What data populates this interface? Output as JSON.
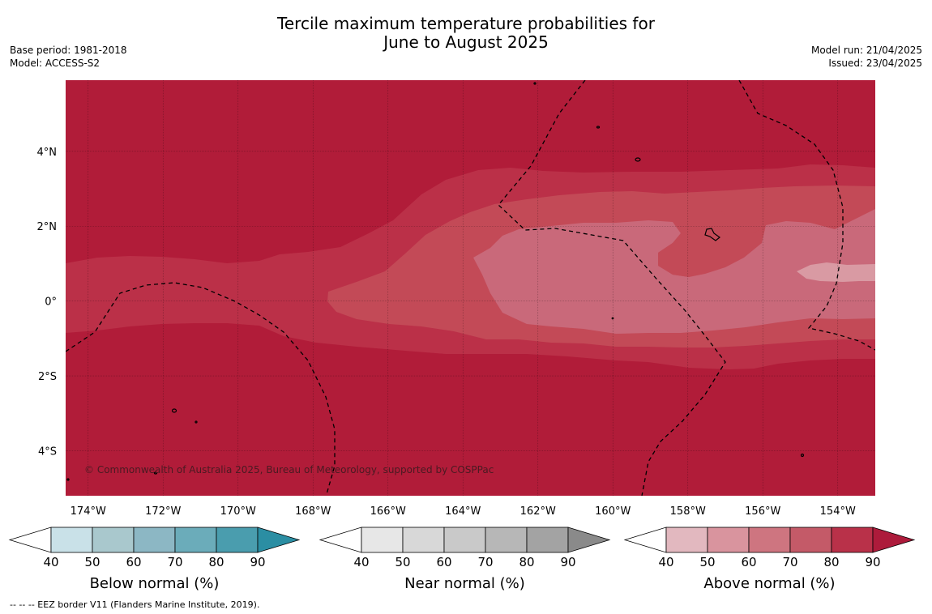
{
  "header": {
    "title_line1": "Tercile maximum temperature probabilities for",
    "title_line2": "June to August 2025",
    "base_period": "Base period: 1981-2018",
    "model": "Model: ACCESS-S2",
    "model_run": "Model run: 21/04/2025",
    "issued": "Issued: 23/04/2025"
  },
  "map": {
    "copyright": "© Commonwealth of Australia 2025, Bureau of Meteorology, supported by COSPPac",
    "lon_ticks": [
      "174°W",
      "172°W",
      "170°W",
      "168°W",
      "166°W",
      "164°W",
      "162°W",
      "160°W",
      "158°W",
      "156°W",
      "154°W"
    ],
    "lat_ticks": [
      "4°N",
      "2°N",
      "0°",
      "2°S",
      "4°S"
    ],
    "lon_values": [
      -174,
      -172,
      -170,
      -168,
      -166,
      -164,
      -162,
      -160,
      -158,
      -156,
      -154
    ],
    "lat_values": [
      4,
      2,
      0,
      -2,
      -4
    ],
    "lon_range": [
      -174.6,
      -153.0
    ],
    "lat_range": [
      -5.2,
      5.9
    ],
    "colors": {
      "above_90": "#b11c39",
      "above_80": "#bb3048",
      "above_70": "#c34a57",
      "above_60": "#c9697a",
      "above_50": "#d99aa3"
    }
  },
  "colorbars": [
    {
      "name": "Below normal (%)",
      "ticks": [
        "40",
        "50",
        "60",
        "70",
        "80",
        "90"
      ],
      "colors": [
        "#ffffff",
        "#c9e1e8",
        "#a9c8cd",
        "#8cb7c4",
        "#6bacba",
        "#4a9dae",
        "#2b8ea3"
      ]
    },
    {
      "name": "Near normal (%)",
      "ticks": [
        "40",
        "50",
        "60",
        "70",
        "80",
        "90"
      ],
      "colors": [
        "#ffffff",
        "#e7e7e7",
        "#d8d8d8",
        "#c9c9c9",
        "#b7b7b7",
        "#a3a3a3",
        "#8a8a8a"
      ]
    },
    {
      "name": "Above normal (%)",
      "ticks": [
        "40",
        "50",
        "60",
        "70",
        "80",
        "90"
      ],
      "colors": [
        "#ffffff",
        "#e2b8bf",
        "#d9949e",
        "#ce7580",
        "#c45a68",
        "#b93149",
        "#ad1b3b"
      ]
    }
  ],
  "footnote": "--  --  -- EEZ border V11 (Flanders Marine Institute, 2019)."
}
